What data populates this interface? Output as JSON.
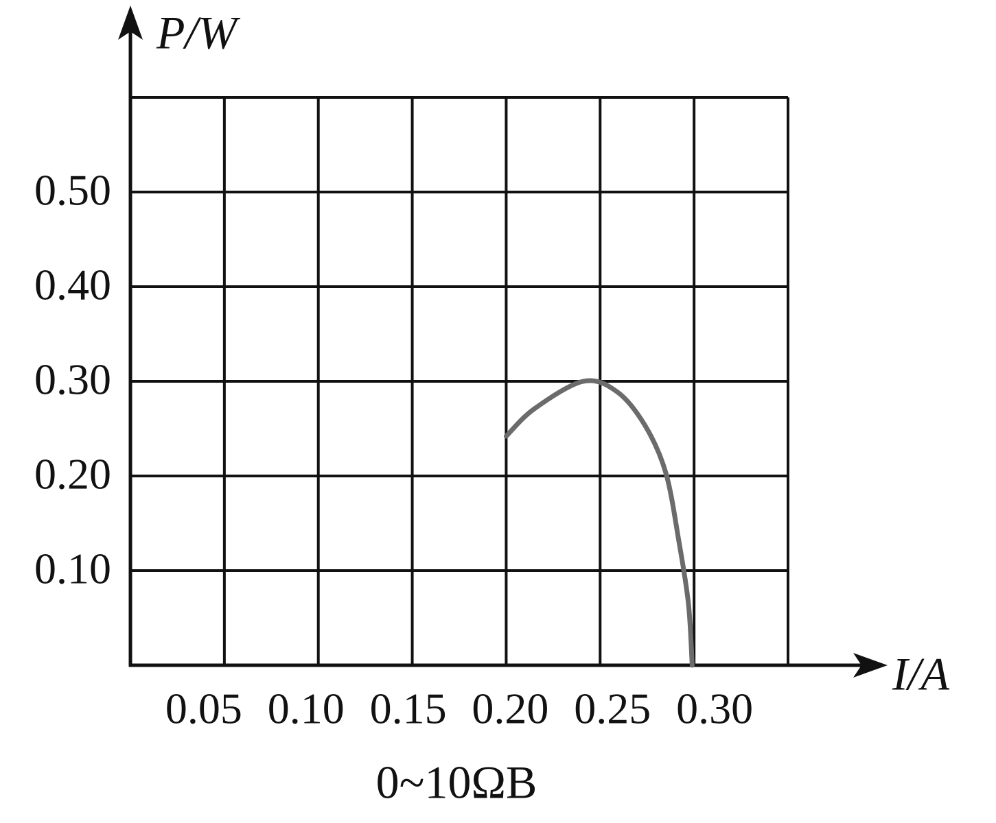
{
  "chart_data": {
    "type": "line",
    "y_label": "P/W",
    "x_label": "I/A",
    "caption": "0~10ΩB",
    "xlim": [
      0,
      0.35
    ],
    "ylim": [
      0,
      0.6
    ],
    "xticks": [
      {
        "value": 0.05,
        "label": "0.05"
      },
      {
        "value": 0.1,
        "label": "0.10"
      },
      {
        "value": 0.15,
        "label": "0.15"
      },
      {
        "value": 0.2,
        "label": "0.20"
      },
      {
        "value": 0.25,
        "label": "0.25"
      },
      {
        "value": 0.3,
        "label": "0.30"
      }
    ],
    "yticks": [
      {
        "value": 0.1,
        "label": "0.10"
      },
      {
        "value": 0.2,
        "label": "0.20"
      },
      {
        "value": 0.3,
        "label": "0.30"
      },
      {
        "value": 0.4,
        "label": "0.40"
      },
      {
        "value": 0.5,
        "label": "0.50"
      }
    ],
    "grid": true,
    "series": [
      {
        "color": "#6b6b6b",
        "x": [
          0.2,
          0.215,
          0.241,
          0.259,
          0.274,
          0.285,
          0.292,
          0.297,
          0.299
        ],
        "values": [
          0.242,
          0.271,
          0.3,
          0.289,
          0.253,
          0.203,
          0.13,
          0.065,
          0
        ]
      }
    ]
  }
}
